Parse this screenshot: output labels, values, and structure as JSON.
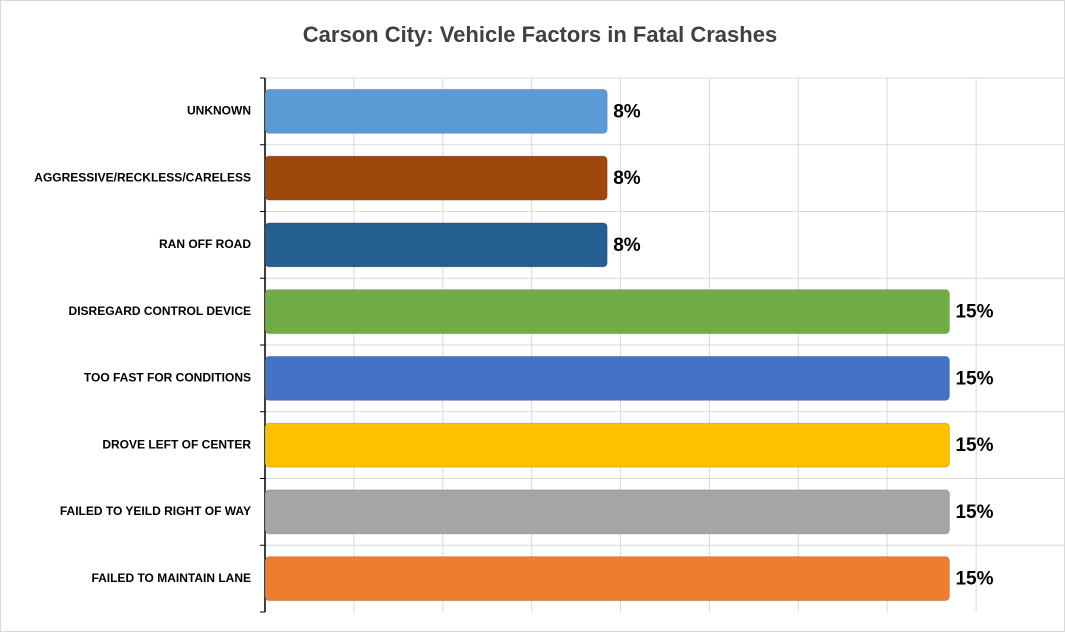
{
  "chart_data": {
    "type": "hbar",
    "title": "Carson City: Vehicle Factors in Fatal Crashes",
    "categories": [
      "UNKNOWN",
      "AGGRESSIVE/RECKLESS/CARELESS",
      "RAN OFF ROAD",
      "DISREGARD CONTROL DEVICE",
      "TOO FAST FOR CONDITIONS",
      "DROVE LEFT OF CENTER",
      "FAILED TO YEILD RIGHT OF WAY",
      "FAILED TO MAINTAIN LANE"
    ],
    "values": [
      7.7,
      7.7,
      7.7,
      15.4,
      15.4,
      15.4,
      15.4,
      15.4
    ],
    "value_labels": [
      "8%",
      "8%",
      "8%",
      "15%",
      "15%",
      "15%",
      "15%",
      "15%"
    ],
    "colors": [
      "#5b9bd5",
      "#9e480e",
      "#255e91",
      "#70ad47",
      "#4472c4",
      "#ffc000",
      "#a5a5a5",
      "#ed7d31"
    ],
    "xlim": [
      0,
      18
    ],
    "xticks": [
      0,
      2,
      4,
      6,
      8,
      10,
      12,
      14,
      16,
      18
    ],
    "grid": true
  }
}
